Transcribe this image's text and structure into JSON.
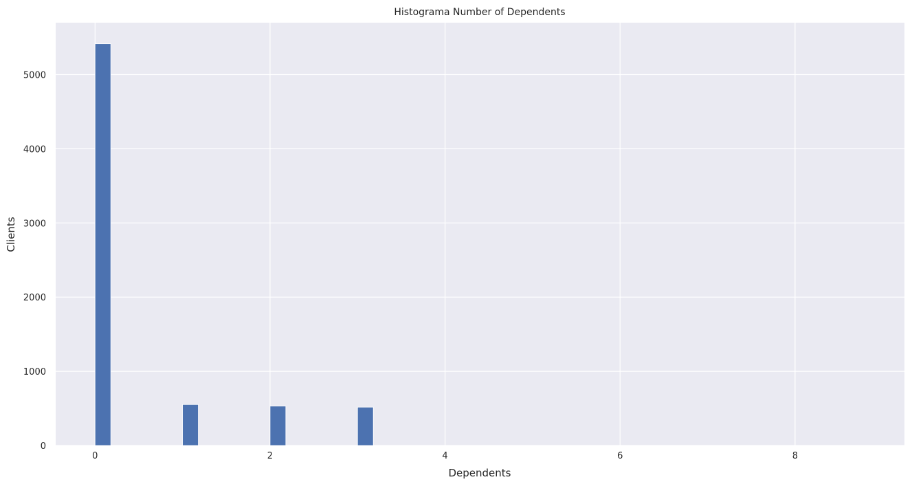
{
  "chart_data": {
    "type": "bar",
    "title": "Histograma Number of Dependents",
    "xlabel": "Dependents",
    "ylabel": "Clients",
    "xlim": [
      -0.45,
      9.25
    ],
    "ylim": [
      0,
      5700
    ],
    "xticks": [
      0,
      2,
      4,
      6,
      8
    ],
    "yticks": [
      0,
      1000,
      2000,
      3000,
      4000,
      5000
    ],
    "bin_width": 0.18,
    "bars": [
      {
        "x": 0,
        "value": 5416
      },
      {
        "x": 1,
        "value": 553
      },
      {
        "x": 2,
        "value": 531
      },
      {
        "x": 3,
        "value": 517
      }
    ],
    "grid": true,
    "bar_color": "#4c72b0",
    "plot_background": "#eaeaf2",
    "grid_color": "#ffffff"
  }
}
